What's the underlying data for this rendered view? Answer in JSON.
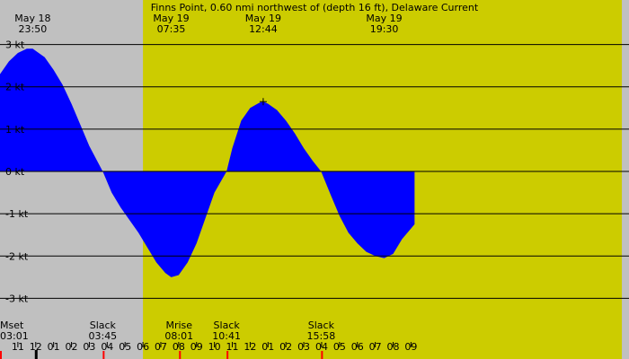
{
  "chart_data": {
    "type": "area",
    "title": "Finns Point, 0.60 nmi northwest of (depth 16 ft), Delaware Current",
    "xlabel": "",
    "ylabel": "",
    "unit": "kt",
    "ylim": [
      -3.5,
      3.5
    ],
    "xlim_hours": [
      -2.0,
      33.2
    ],
    "grid": true,
    "colors": {
      "night": "#c0c0c0",
      "day": "#cccc00",
      "flood": "#0000ff",
      "ebb": "#2e8b57",
      "gridline": "#000000",
      "moon_tick": "#ff0000"
    },
    "daylight_hours": [
      6.0,
      32.8
    ],
    "y_ticks": [
      {
        "value": 3,
        "label": "3 kt"
      },
      {
        "value": 2,
        "label": "2 kt"
      },
      {
        "value": 1,
        "label": "1 kt"
      },
      {
        "value": 0,
        "label": "0 kt"
      },
      {
        "value": -1,
        "label": "-1 kt"
      },
      {
        "value": -2,
        "label": "-2 kt"
      },
      {
        "value": -3,
        "label": "-3 kt"
      }
    ],
    "x_ticks": [
      {
        "hour": -1,
        "label": "11"
      },
      {
        "hour": 0,
        "label": "12"
      },
      {
        "hour": 1,
        "label": "01"
      },
      {
        "hour": 2,
        "label": "02"
      },
      {
        "hour": 3,
        "label": "03"
      },
      {
        "hour": 4,
        "label": "04"
      },
      {
        "hour": 5,
        "label": "05"
      },
      {
        "hour": 6,
        "label": "06"
      },
      {
        "hour": 7,
        "label": "07"
      },
      {
        "hour": 8,
        "label": "08"
      },
      {
        "hour": 9,
        "label": "09"
      },
      {
        "hour": 10,
        "label": "10"
      },
      {
        "hour": 11,
        "label": "11"
      },
      {
        "hour": 12,
        "label": "12"
      },
      {
        "hour": 13,
        "label": "01"
      },
      {
        "hour": 14,
        "label": "02"
      },
      {
        "hour": 15,
        "label": "03"
      },
      {
        "hour": 16,
        "label": "04"
      },
      {
        "hour": 17,
        "label": "05"
      },
      {
        "hour": 18,
        "label": "06"
      },
      {
        "hour": 19,
        "label": "07"
      },
      {
        "hour": 20,
        "label": "08"
      },
      {
        "hour": 21,
        "label": "09"
      }
    ],
    "top_labels": [
      {
        "hour": -0.17,
        "date": "May 18",
        "time": "23:50"
      },
      {
        "hour": 7.58,
        "date": "May 19",
        "time": "07:35"
      },
      {
        "hour": 12.73,
        "date": "May 19",
        "time": "12:44"
      },
      {
        "hour": 19.5,
        "date": "May 19",
        "time": "19:30"
      }
    ],
    "bottom_events": [
      {
        "hour": -2.0,
        "name": "Mset",
        "time": "03:01"
      },
      {
        "hour": 3.75,
        "name": "Slack",
        "time": "03:45"
      },
      {
        "hour": 8.02,
        "name": "Mrise",
        "time": "08:01"
      },
      {
        "hour": 10.68,
        "name": "Slack",
        "time": "10:41"
      },
      {
        "hour": 15.97,
        "name": "Slack",
        "time": "15:58"
      }
    ],
    "series": [
      {
        "x": [
          -2.0,
          -1.5,
          -1.0,
          -0.5,
          -0.17,
          0.5,
          1.0,
          1.5,
          2.0,
          2.5,
          3.0,
          3.5,
          3.75,
          4.25,
          4.75,
          5.25,
          5.75,
          6.25,
          6.75,
          7.25,
          7.58,
          8.0,
          8.5,
          9.0,
          9.5,
          10.0,
          10.68,
          11.0,
          11.5,
          12.0,
          12.5,
          12.73,
          13.0,
          13.5,
          14.0,
          14.5,
          15.0,
          15.5,
          15.97,
          16.5,
          17.0,
          17.5,
          18.0,
          18.5,
          19.0,
          19.5,
          20.0,
          20.5,
          21.2
        ],
        "y": [
          2.3,
          2.6,
          2.8,
          2.9,
          2.9,
          2.7,
          2.4,
          2.05,
          1.6,
          1.1,
          0.6,
          0.2,
          0.0,
          -0.5,
          -0.85,
          -1.15,
          -1.45,
          -1.8,
          -2.15,
          -2.4,
          -2.5,
          -2.45,
          -2.15,
          -1.7,
          -1.1,
          -0.5,
          0.0,
          0.55,
          1.2,
          1.5,
          1.62,
          1.65,
          1.6,
          1.45,
          1.2,
          0.9,
          0.55,
          0.25,
          0.0,
          -0.55,
          -1.05,
          -1.45,
          -1.7,
          -1.9,
          -2.0,
          -2.05,
          -1.95,
          -1.6,
          -1.25
        ]
      }
    ]
  }
}
